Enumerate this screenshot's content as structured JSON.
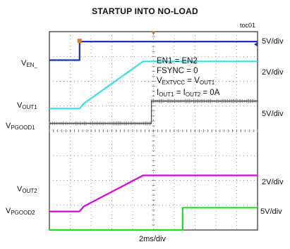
{
  "title": "STARTUP INTO NO-LOAD",
  "figure_id": "toc01",
  "timebase": "2ms/div",
  "annotations": {
    "line1": "EN1 = EN2",
    "line2": "FSYNC = 0",
    "line3_main": "V",
    "line3_sub1": "EXTVCC",
    "line3_mid": " = V",
    "line3_sub2": "OUT1",
    "line4_main": "I",
    "line4_sub1": "OUT1",
    "line4_mid": " = I",
    "line4_sub2": "OUT2",
    "line4_end": " = 0A"
  },
  "chart_data": {
    "type": "line",
    "title": "STARTUP INTO NO-LOAD",
    "xlabel": "2ms/div",
    "x_divisions": 10,
    "y_divisions": 8,
    "grid": true,
    "series": [
      {
        "name": "VEN_",
        "color": "#1f2fbf",
        "scale": "5V/div",
        "x": [
          0,
          1.45,
          1.45,
          10
        ],
        "y": [
          6.85,
          6.85,
          7.6,
          7.6
        ]
      },
      {
        "name": "VOUT1",
        "color": "#33e0e6",
        "scale": "2V/div",
        "x": [
          0,
          1.45,
          1.65,
          4.5,
          10
        ],
        "y": [
          4.9,
          4.9,
          5.1,
          6.8,
          6.8
        ]
      },
      {
        "name": "VPGOOD1",
        "color": "#555555",
        "scale": "5V/div",
        "x": [
          0,
          4.9,
          4.9,
          10
        ],
        "y": [
          4.3,
          4.3,
          5.2,
          5.2
        ]
      },
      {
        "name": "VOUT2",
        "color": "#e000e0",
        "scale": "2V/div",
        "x": [
          0,
          1.45,
          1.65,
          4.5,
          10
        ],
        "y": [
          0.75,
          0.75,
          0.95,
          2.2,
          2.2
        ]
      },
      {
        "name": "VPGOOD2",
        "color": "#22dd22",
        "scale": "5V/div",
        "x": [
          0,
          6.4,
          6.4,
          10
        ],
        "y": [
          0.0,
          0.0,
          0.9,
          0.9
        ]
      }
    ]
  }
}
